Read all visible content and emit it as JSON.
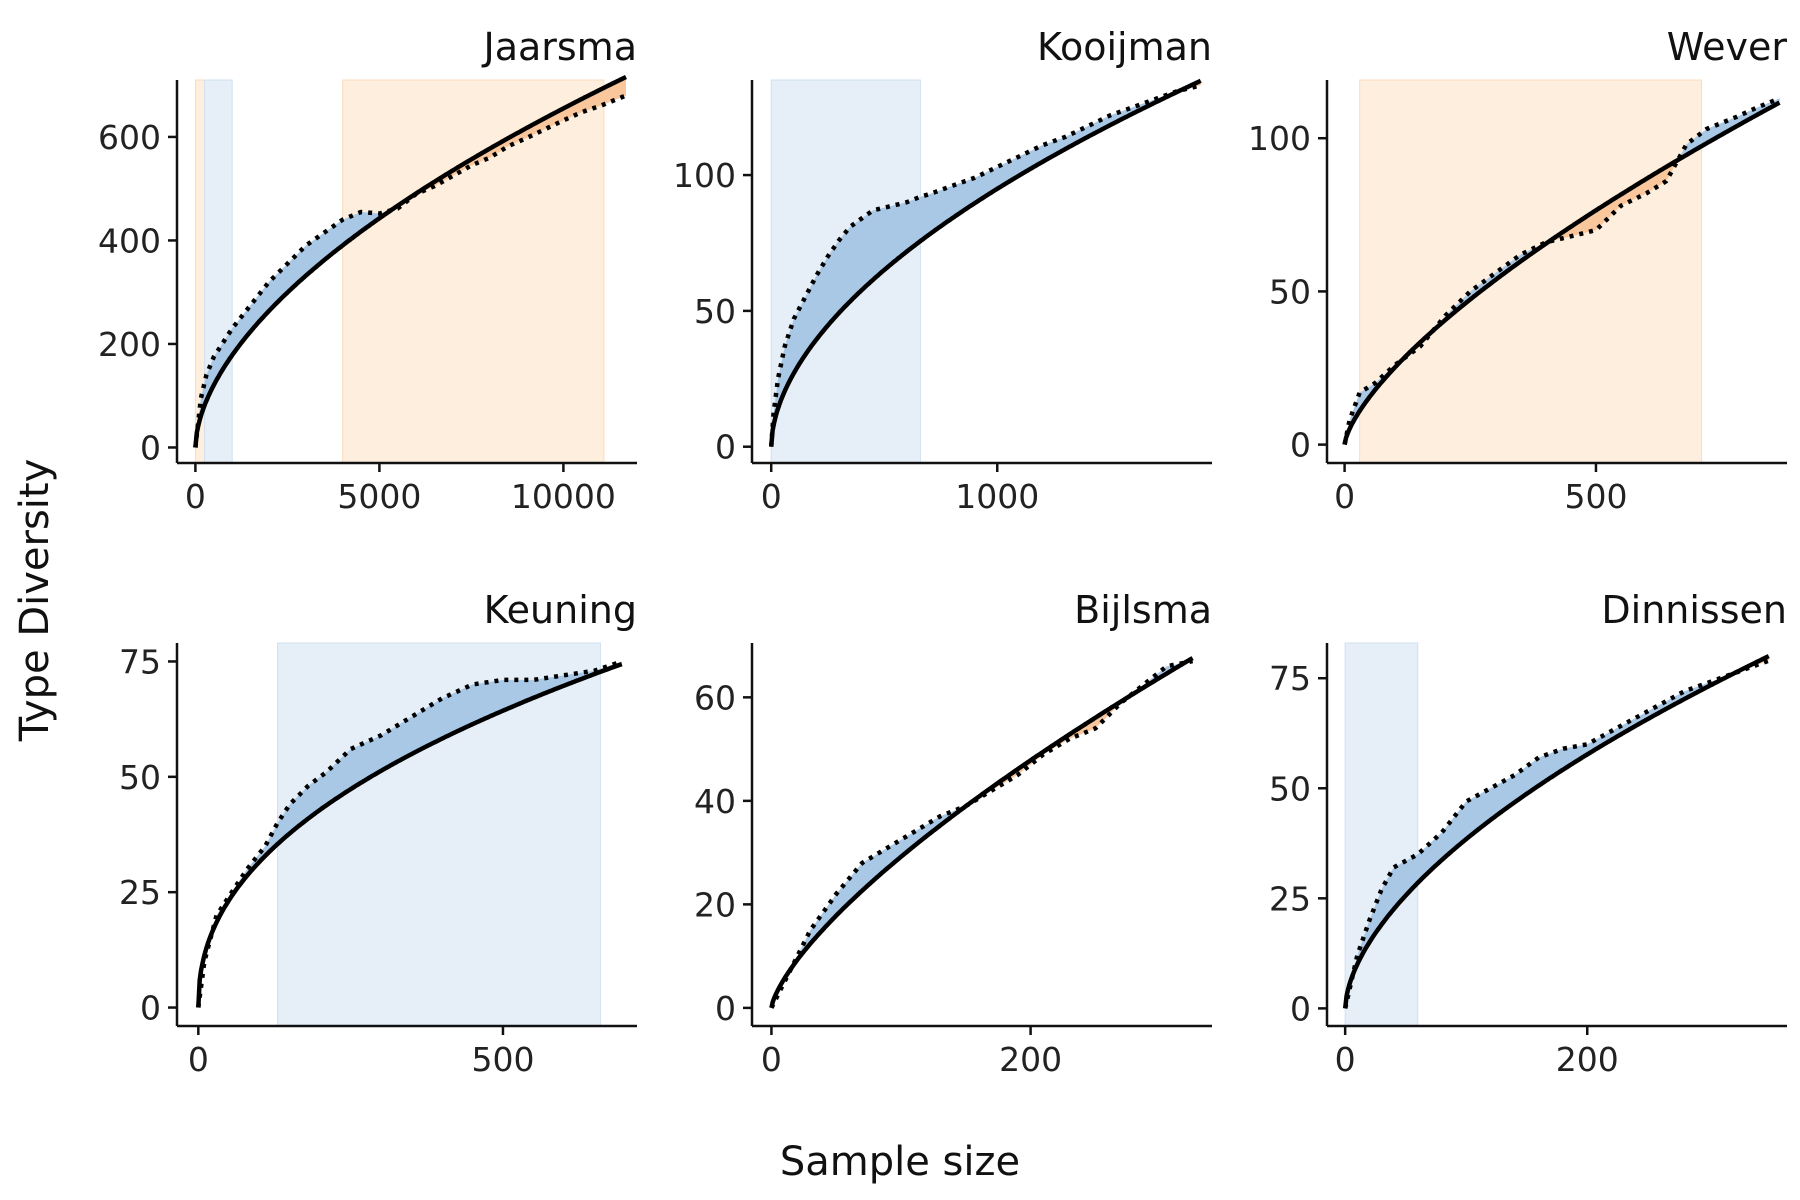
{
  "figure": {
    "xlabel": "Sample size",
    "ylabel": "Type Diversity"
  },
  "colors": {
    "above_fill": "#a9c8e6",
    "below_fill": "#f9c79b",
    "above_band": "#e6eff8",
    "below_band": "#feeedd",
    "line": "#000000",
    "axis": "#111111"
  },
  "chart_data": [
    {
      "type": "area",
      "title": "Jaarsma",
      "xlim": [
        -500,
        12000
      ],
      "ylim": [
        -30,
        710
      ],
      "xticks": [
        0,
        5000,
        10000
      ],
      "xtick_labels": [
        "0",
        "5000",
        "10000"
      ],
      "yticks": [
        0,
        200,
        400,
        600
      ],
      "ytick_labels": [
        "0",
        "200",
        "400",
        "600"
      ],
      "expected": {
        "a": 3.6,
        "b": 0.565,
        "xmax": 11700
      },
      "observed": [
        [
          0,
          0
        ],
        [
          150,
          95
        ],
        [
          300,
          140
        ],
        [
          500,
          175
        ],
        [
          1000,
          230
        ],
        [
          2000,
          320
        ],
        [
          3000,
          390
        ],
        [
          4000,
          440
        ],
        [
          4500,
          455
        ],
        [
          5000,
          452
        ],
        [
          5500,
          462
        ],
        [
          6000,
          490
        ],
        [
          6500,
          505
        ],
        [
          7000,
          525
        ],
        [
          7500,
          545
        ],
        [
          8000,
          560
        ],
        [
          8500,
          582
        ],
        [
          9000,
          598
        ],
        [
          9500,
          615
        ],
        [
          10000,
          632
        ],
        [
          10500,
          648
        ],
        [
          11000,
          660
        ],
        [
          11700,
          680
        ]
      ],
      "bands": [
        {
          "x0": 0,
          "x1": 250,
          "kind": "below"
        },
        {
          "x0": 250,
          "x1": 1000,
          "kind": "above"
        },
        {
          "x0": 4000,
          "x1": 11100,
          "kind": "below"
        }
      ]
    },
    {
      "type": "area",
      "title": "Kooijman",
      "xlim": [
        -85,
        1950
      ],
      "ylim": [
        -6,
        135
      ],
      "xticks": [
        0,
        1000
      ],
      "xtick_labels": [
        "0",
        "1000"
      ],
      "yticks": [
        0,
        50,
        100
      ],
      "ytick_labels": [
        "0",
        "50",
        "100"
      ],
      "expected": {
        "a": 2.2,
        "b": 0.545,
        "xmax": 1900
      },
      "observed": [
        [
          0,
          0
        ],
        [
          10,
          12
        ],
        [
          30,
          25
        ],
        [
          60,
          37
        ],
        [
          100,
          47
        ],
        [
          150,
          55
        ],
        [
          200,
          63
        ],
        [
          250,
          70
        ],
        [
          300,
          76
        ],
        [
          350,
          81
        ],
        [
          400,
          84
        ],
        [
          450,
          87
        ],
        [
          500,
          88
        ],
        [
          550,
          89
        ],
        [
          600,
          90
        ],
        [
          660,
          92
        ],
        [
          700,
          93
        ],
        [
          800,
          96
        ],
        [
          900,
          99
        ],
        [
          1000,
          103
        ],
        [
          1100,
          107
        ],
        [
          1200,
          111
        ],
        [
          1300,
          114
        ],
        [
          1400,
          118
        ],
        [
          1500,
          122
        ],
        [
          1600,
          125
        ],
        [
          1700,
          128
        ],
        [
          1800,
          131
        ],
        [
          1900,
          133
        ]
      ],
      "bands": [
        {
          "x0": 0,
          "x1": 660,
          "kind": "above"
        }
      ]
    },
    {
      "type": "area",
      "title": "Wever",
      "xlim": [
        -35,
        880
      ],
      "ylim": [
        -6,
        119
      ],
      "xticks": [
        0,
        500
      ],
      "xtick_labels": [
        "0",
        "500"
      ],
      "yticks": [
        0,
        50,
        100
      ],
      "ytick_labels": [
        "0",
        "50",
        "100"
      ],
      "expected": {
        "a": 1.05,
        "b": 0.69,
        "xmax": 865
      },
      "observed": [
        [
          0,
          0
        ],
        [
          10,
          8
        ],
        [
          30,
          17
        ],
        [
          60,
          20
        ],
        [
          100,
          26
        ],
        [
          150,
          32
        ],
        [
          200,
          42
        ],
        [
          250,
          50
        ],
        [
          300,
          56
        ],
        [
          350,
          62
        ],
        [
          400,
          66
        ],
        [
          450,
          68
        ],
        [
          500,
          70
        ],
        [
          550,
          78
        ],
        [
          600,
          82
        ],
        [
          640,
          86
        ],
        [
          680,
          98
        ],
        [
          720,
          103
        ],
        [
          780,
          107
        ],
        [
          820,
          110
        ],
        [
          865,
          113
        ]
      ],
      "bands": [
        {
          "x0": 30,
          "x1": 710,
          "kind": "below"
        }
      ]
    },
    {
      "type": "area",
      "title": "Keuning",
      "xlim": [
        -35,
        720
      ],
      "ylim": [
        -4,
        79
      ],
      "xticks": [
        0,
        500
      ],
      "xtick_labels": [
        "0",
        "500"
      ],
      "yticks": [
        0,
        25,
        50,
        75
      ],
      "ytick_labels": [
        "0",
        "25",
        "50",
        "75"
      ],
      "expected": {
        "a": 4.1,
        "b": 0.443,
        "xmax": 695
      },
      "observed": [
        [
          0,
          0
        ],
        [
          10,
          10
        ],
        [
          30,
          20
        ],
        [
          50,
          24
        ],
        [
          80,
          30
        ],
        [
          110,
          35
        ],
        [
          130,
          40
        ],
        [
          150,
          44
        ],
        [
          180,
          48
        ],
        [
          210,
          51
        ],
        [
          250,
          56
        ],
        [
          300,
          59
        ],
        [
          350,
          63
        ],
        [
          400,
          67
        ],
        [
          450,
          70
        ],
        [
          500,
          71
        ],
        [
          550,
          71
        ],
        [
          600,
          72
        ],
        [
          650,
          73
        ],
        [
          695,
          75
        ]
      ],
      "bands": [
        {
          "x0": 130,
          "x1": 660,
          "kind": "above"
        }
      ]
    },
    {
      "type": "area",
      "title": "Bijlsma",
      "xlim": [
        -15,
        340
      ],
      "ylim": [
        -3.5,
        70.5
      ],
      "xticks": [
        0,
        200
      ],
      "xtick_labels": [
        "0",
        "200"
      ],
      "yticks": [
        0,
        20,
        40,
        60
      ],
      "ytick_labels": [
        "0",
        "20",
        "40",
        "60"
      ],
      "expected": {
        "a": 1.1,
        "b": 0.712,
        "xmax": 325
      },
      "observed": [
        [
          0,
          0
        ],
        [
          10,
          5
        ],
        [
          20,
          10
        ],
        [
          30,
          15
        ],
        [
          50,
          22
        ],
        [
          70,
          28
        ],
        [
          90,
          31
        ],
        [
          110,
          34
        ],
        [
          130,
          37
        ],
        [
          150,
          39
        ],
        [
          170,
          42
        ],
        [
          190,
          45
        ],
        [
          210,
          49
        ],
        [
          230,
          52
        ],
        [
          250,
          54
        ],
        [
          270,
          59
        ],
        [
          290,
          63
        ],
        [
          305,
          66
        ],
        [
          325,
          67
        ]
      ],
      "bands": []
    },
    {
      "type": "area",
      "title": "Dinnissen",
      "xlim": [
        -15,
        365
      ],
      "ylim": [
        -4,
        83
      ],
      "xticks": [
        0,
        200
      ],
      "xtick_labels": [
        "0",
        "200"
      ],
      "yticks": [
        0,
        25,
        50,
        75
      ],
      "ytick_labels": [
        "0",
        "25",
        "50",
        "75"
      ],
      "expected": {
        "a": 2.6,
        "b": 0.585,
        "xmax": 350
      },
      "observed": [
        [
          0,
          0
        ],
        [
          5,
          6
        ],
        [
          10,
          12
        ],
        [
          20,
          20
        ],
        [
          30,
          27
        ],
        [
          40,
          32
        ],
        [
          60,
          35
        ],
        [
          80,
          40
        ],
        [
          100,
          47
        ],
        [
          120,
          50
        ],
        [
          140,
          53
        ],
        [
          160,
          57
        ],
        [
          180,
          59
        ],
        [
          200,
          60
        ],
        [
          220,
          63
        ],
        [
          240,
          66
        ],
        [
          260,
          69
        ],
        [
          280,
          72
        ],
        [
          300,
          74
        ],
        [
          320,
          76
        ],
        [
          350,
          79
        ]
      ],
      "bands": [
        {
          "x0": 0,
          "x1": 60,
          "kind": "above"
        }
      ]
    }
  ]
}
